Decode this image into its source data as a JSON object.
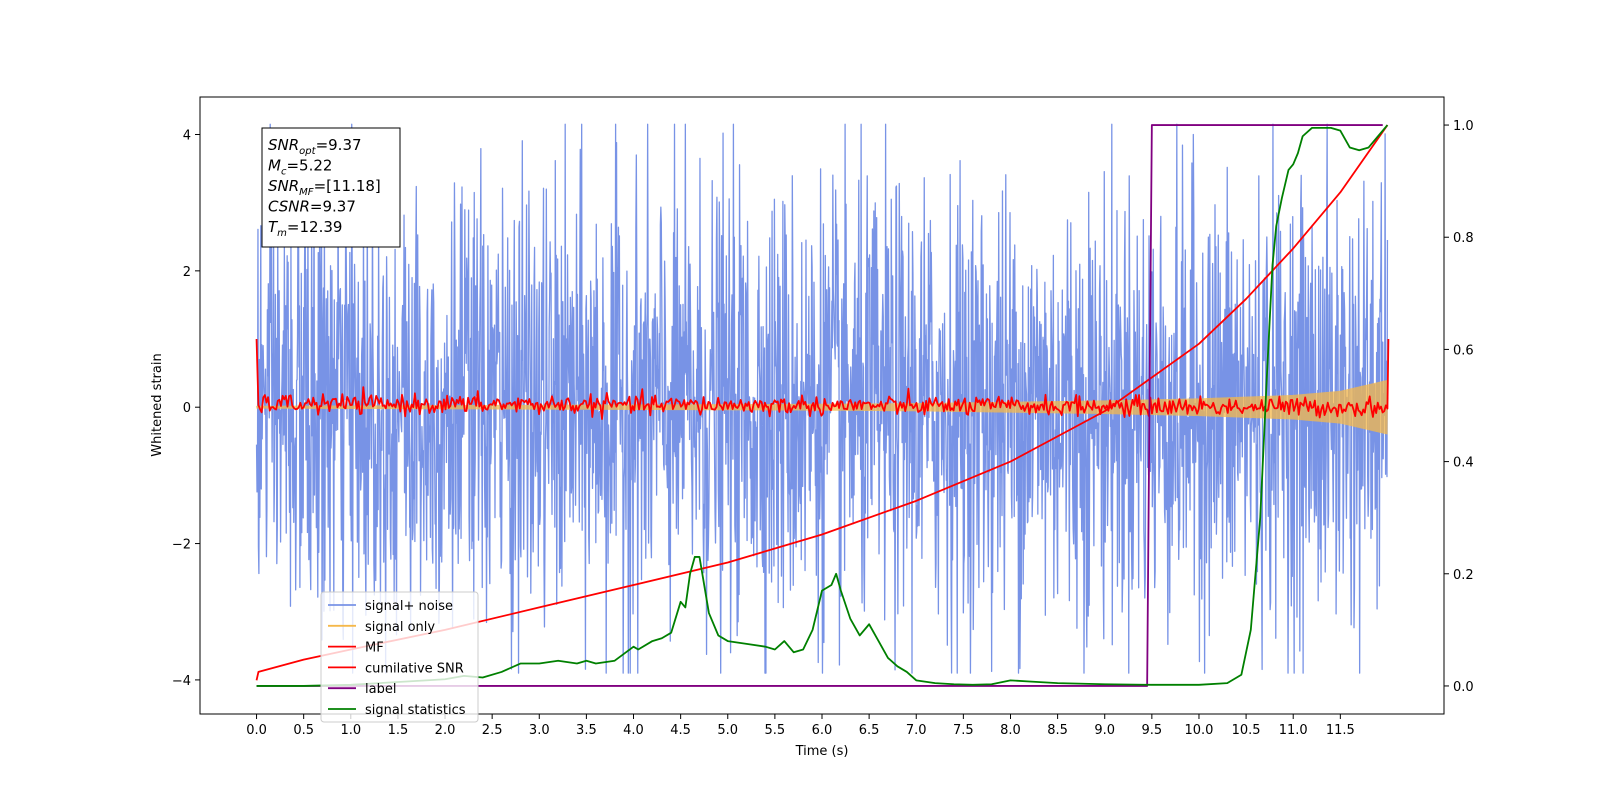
{
  "chart_data": {
    "type": "line",
    "xlabel": "Time (s)",
    "ylabel": "Whitened strain",
    "xlim": [
      -0.6,
      12.6
    ],
    "ylim_left": [
      -4.5,
      4.55
    ],
    "ylim_right": [
      -0.05,
      1.05
    ],
    "x_ticks": [
      0.0,
      0.5,
      1.0,
      1.5,
      2.0,
      2.5,
      3.0,
      3.5,
      4.0,
      4.5,
      5.0,
      5.5,
      6.0,
      6.5,
      7.0,
      7.5,
      8.0,
      8.5,
      9.0,
      9.5,
      10.0,
      10.5,
      11.0,
      11.5
    ],
    "x_tick_labels": [
      "0.0",
      "0.5",
      "1.0",
      "1.5",
      "2.0",
      "2.5",
      "3.0",
      "3.5",
      "4.0",
      "4.5",
      "5.0",
      "5.5",
      "6.0",
      "6.5",
      "7.0",
      "7.5",
      "8.0",
      "8.5",
      "9.0",
      "9.5",
      "10.0",
      "10.5",
      "11.0",
      "11.5"
    ],
    "y_ticks_left": [
      -4,
      -2,
      0,
      2,
      4
    ],
    "y_tick_labels_left": [
      "−4",
      "−2",
      "0",
      "2",
      "4"
    ],
    "y_ticks_right": [
      0.0,
      0.2,
      0.4,
      0.6,
      0.8,
      1.0
    ],
    "y_tick_labels_right": [
      "0.0",
      "0.2",
      "0.4",
      "0.6",
      "0.8",
      "1.0"
    ],
    "legend_placement": "lower-left",
    "series": [
      {
        "name": "signal+ noise",
        "axis": "left",
        "color": "#7893e6",
        "description_range": [
          -3.9,
          4.15
        ],
        "envelope_x": [
          0.0,
          2.0,
          4.0,
          6.0,
          8.0,
          10.0,
          12.0
        ],
        "envelope_upper": [
          2.6,
          2.6,
          2.6,
          2.6,
          2.6,
          2.6,
          2.6
        ],
        "envelope_lower": [
          -2.6,
          -2.6,
          -2.6,
          -2.6,
          -2.6,
          -2.6,
          -2.6
        ]
      },
      {
        "name": "signal only",
        "axis": "left",
        "color": "#f5b84a",
        "envelope_x": [
          0.0,
          2.0,
          4.0,
          6.0,
          7.0,
          8.0,
          9.0,
          10.0,
          11.0,
          11.5,
          12.0
        ],
        "envelope_upper": [
          0.02,
          0.03,
          0.04,
          0.05,
          0.06,
          0.08,
          0.1,
          0.13,
          0.18,
          0.24,
          0.4
        ],
        "envelope_lower": [
          -0.02,
          -0.03,
          -0.04,
          -0.05,
          -0.06,
          -0.08,
          -0.1,
          -0.13,
          -0.18,
          -0.24,
          -0.4
        ]
      },
      {
        "name": "MF",
        "axis": "left",
        "color": "#ff0000",
        "x": [
          0.0,
          0.02,
          12.0,
          12.01
        ],
        "y": [
          1.0,
          0.05,
          0.0,
          1.0
        ],
        "noise_amplitude": 0.1
      },
      {
        "name": "cumilative SNR",
        "axis": "right",
        "color": "#ff0000",
        "x": [
          0.0,
          0.02,
          0.5,
          1.0,
          2.0,
          3.0,
          4.0,
          5.0,
          6.0,
          7.0,
          8.0,
          9.0,
          10.0,
          10.5,
          11.0,
          11.5,
          12.0
        ],
        "y": [
          0.01,
          0.025,
          0.047,
          0.065,
          0.1,
          0.14,
          0.18,
          0.22,
          0.27,
          0.33,
          0.4,
          0.49,
          0.61,
          0.69,
          0.78,
          0.88,
          1.0
        ]
      },
      {
        "name": "label",
        "axis": "right",
        "color": "#800080",
        "x": [
          0.0,
          9.45,
          9.5,
          11.95
        ],
        "y": [
          0.0,
          0.0,
          1.0,
          1.0
        ]
      },
      {
        "name": "signal statistics",
        "axis": "right",
        "color": "#008000",
        "x": [
          0.0,
          0.5,
          1.0,
          1.5,
          1.8,
          2.0,
          2.2,
          2.4,
          2.6,
          2.8,
          3.0,
          3.2,
          3.4,
          3.5,
          3.6,
          3.8,
          4.0,
          4.05,
          4.2,
          4.3,
          4.4,
          4.5,
          4.55,
          4.6,
          4.65,
          4.7,
          4.8,
          4.9,
          5.0,
          5.2,
          5.4,
          5.5,
          5.6,
          5.7,
          5.8,
          5.9,
          6.0,
          6.1,
          6.15,
          6.2,
          6.3,
          6.4,
          6.5,
          6.6,
          6.7,
          6.8,
          6.9,
          7.0,
          7.2,
          7.4,
          7.6,
          7.8,
          8.0,
          8.2,
          8.5,
          9.0,
          9.5,
          10.0,
          10.3,
          10.45,
          10.55,
          10.65,
          10.72,
          10.78,
          10.82,
          10.88,
          10.95,
          11.0,
          11.05,
          11.1,
          11.2,
          11.4,
          11.5,
          11.6,
          11.7,
          11.8,
          11.9,
          12.0
        ],
        "y": [
          0.0,
          0.0,
          0.002,
          0.007,
          0.01,
          0.012,
          0.018,
          0.015,
          0.025,
          0.04,
          0.04,
          0.045,
          0.04,
          0.045,
          0.04,
          0.045,
          0.07,
          0.065,
          0.08,
          0.085,
          0.095,
          0.15,
          0.14,
          0.2,
          0.23,
          0.23,
          0.13,
          0.09,
          0.08,
          0.075,
          0.07,
          0.065,
          0.08,
          0.06,
          0.065,
          0.1,
          0.17,
          0.18,
          0.2,
          0.17,
          0.12,
          0.09,
          0.11,
          0.08,
          0.05,
          0.035,
          0.025,
          0.01,
          0.005,
          0.003,
          0.002,
          0.003,
          0.01,
          0.008,
          0.005,
          0.003,
          0.002,
          0.002,
          0.005,
          0.02,
          0.1,
          0.3,
          0.55,
          0.75,
          0.82,
          0.87,
          0.92,
          0.93,
          0.95,
          0.98,
          0.995,
          0.995,
          0.99,
          0.96,
          0.955,
          0.96,
          0.98,
          1.0
        ]
      }
    ],
    "annotation": {
      "lines": [
        {
          "base": "SNR",
          "sub": "opt",
          "value": "=9.37"
        },
        {
          "base": "M",
          "sub": "c",
          "value": "=5.22"
        },
        {
          "base": "SNR",
          "sub": "MF",
          "value": "=[11.18]"
        },
        {
          "base": "CSNR",
          "sub": "",
          "value": "=9.37"
        },
        {
          "base": "T",
          "sub": "m",
          "value": "=12.39"
        }
      ]
    }
  }
}
